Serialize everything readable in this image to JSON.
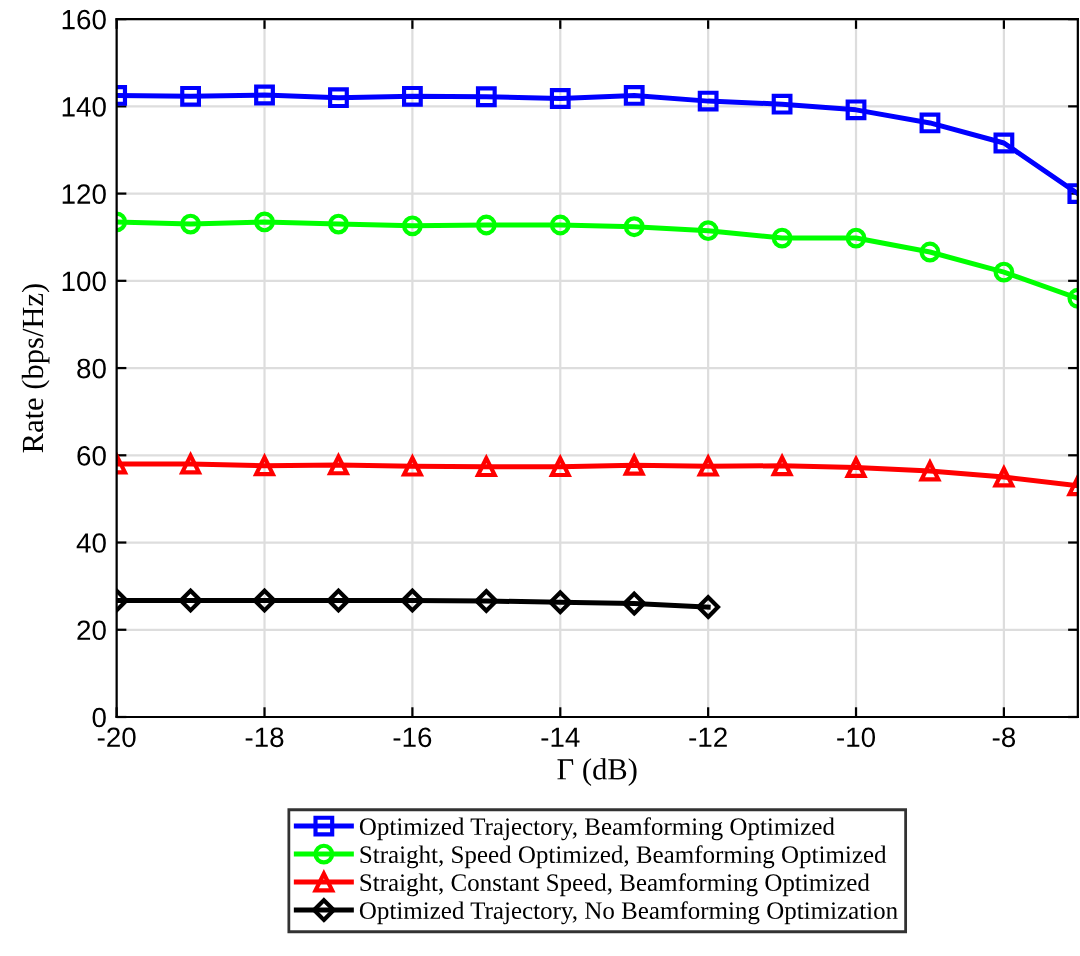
{
  "chart_data": {
    "type": "line",
    "xlabel": "Γ (dB)",
    "ylabel": "Rate (bps/Hz)",
    "x": [
      -20,
      -19,
      -18,
      -17,
      -16,
      -15,
      -14,
      -13,
      -12,
      -11,
      -10,
      -9,
      -8,
      -7
    ],
    "xlim": [
      -20,
      -7
    ],
    "xticks": [
      -20,
      -18,
      -16,
      -14,
      -12,
      -10,
      -8
    ],
    "ylim": [
      0,
      160
    ],
    "yticks": [
      0,
      20,
      40,
      60,
      80,
      100,
      120,
      140,
      160
    ],
    "grid": true,
    "legend": "bottom",
    "line_style": "solid",
    "series": [
      {
        "name": "Optimized Trajectory, Beamforming Optimized",
        "color": "#0000ff",
        "marker": "square",
        "values": [
          142.5,
          142.3,
          142.6,
          142,
          142.3,
          142.2,
          141.8,
          142.5,
          141.2,
          140.5,
          139.2,
          136.2,
          131.6,
          120
        ]
      },
      {
        "name": "Straight, Speed Optimized, Beamforming Optimized",
        "color": "#00ff00",
        "marker": "circle",
        "values": [
          113.5,
          113,
          113.5,
          113,
          112.6,
          112.8,
          112.8,
          112.4,
          111.5,
          109.8,
          109.8,
          106.6,
          102,
          96
        ]
      },
      {
        "name": "Straight, Constant Speed, Beamforming Optimized",
        "color": "#ff0000",
        "marker": "triangle",
        "values": [
          58,
          58,
          57.6,
          57.8,
          57.5,
          57.4,
          57.4,
          57.7,
          57.5,
          57.6,
          57.2,
          56.4,
          55,
          53
        ]
      },
      {
        "name": "Optimized Trajectory, No Beamforming Optimization",
        "color": "#000000",
        "marker": "diamond",
        "values": [
          26.7,
          26.7,
          26.7,
          26.7,
          26.7,
          26.6,
          26.3,
          26,
          25.2,
          null,
          null,
          null,
          null,
          null
        ]
      }
    ]
  }
}
